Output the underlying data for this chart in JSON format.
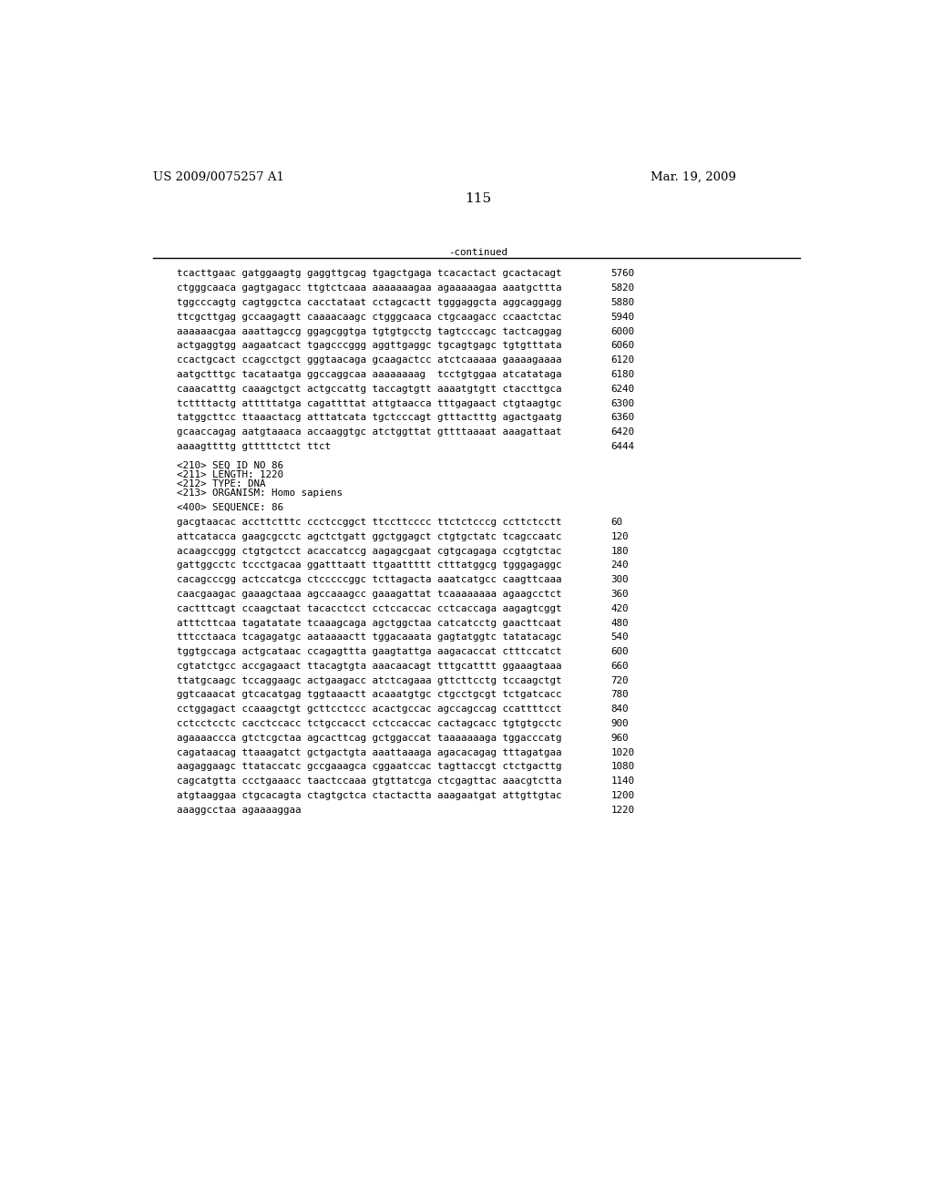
{
  "left_header": "US 2009/0075257 A1",
  "right_header": "Mar. 19, 2009",
  "page_number": "115",
  "continued_label": "-continued",
  "background_color": "#ffffff",
  "text_color": "#000000",
  "font_size_header": 9.5,
  "font_size_body": 7.8,
  "font_size_page": 11,
  "sequence_lines_part1": [
    [
      "tcacttgaac gatggaagtg gaggttgcag tgagctgaga tcacactact gcactacagt",
      "5760"
    ],
    [
      "ctgggcaaca gagtgagacc ttgtctcaaa aaaaaaagaa agaaaaagaa aaatgcttta",
      "5820"
    ],
    [
      "tggcccagtg cagtggctca cacctataat cctagcactt tgggaggcta aggcaggagg",
      "5880"
    ],
    [
      "ttcgcttgag gccaagagtt caaaacaagc ctgggcaaca ctgcaagacc ccaactctac",
      "5940"
    ],
    [
      "aaaaaacgaa aaattagccg ggagcggtga tgtgtgcctg tagtcccagc tactcaggag",
      "6000"
    ],
    [
      "actgaggtgg aagaatcact tgagcccggg aggttgaggc tgcagtgagc tgtgtttata",
      "6060"
    ],
    [
      "ccactgcact ccagcctgct gggtaacaga gcaagactcc atctcaaaaa gaaaagaaaa",
      "6120"
    ],
    [
      "aatgctttgc tacataatga ggccaggcaa aaaaaaaag  tcctgtggaa atcatataga",
      "6180"
    ],
    [
      "caaacatttg caaagctgct actgccattg taccagtgtt aaaatgtgtt ctaccttgca",
      "6240"
    ],
    [
      "tcttttactg atttttatga cagattttat attgtaacca tttgagaact ctgtaagtgc",
      "6300"
    ],
    [
      "tatggcttcc ttaaactacg atttatcata tgctcccagt gtttactttg agactgaatg",
      "6360"
    ],
    [
      "gcaaccagag aatgtaaaca accaaggtgc atctggttat gttttaaaat aaagattaat",
      "6420"
    ],
    [
      "aaaagttttg gtttttctct ttct",
      "6444"
    ]
  ],
  "metadata_lines": [
    "<210> SEQ ID NO 86",
    "<211> LENGTH: 1220",
    "<212> TYPE: DNA",
    "<213> ORGANISM: Homo sapiens"
  ],
  "sequence_header": "<400> SEQUENCE: 86",
  "sequence_lines_part2": [
    [
      "gacgtaacac accttctttc ccctccggct ttccttcccc ttctctcccg ccttctcctt",
      "60"
    ],
    [
      "attcatacca gaagcgcctc agctctgatt ggctggagct ctgtgctatc tcagccaatc",
      "120"
    ],
    [
      "acaagccggg ctgtgctcct acaccatccg aagagcgaat cgtgcagaga ccgtgtctac",
      "180"
    ],
    [
      "gattggcctc tccctgacaa ggatttaatt ttgaattttt ctttatggcg tgggagaggc",
      "240"
    ],
    [
      "cacagcccgg actccatcga ctcccccggc tcttagacta aaatcatgcc caagttcaaa",
      "300"
    ],
    [
      "caacgaagac gaaagctaaa agccaaagcc gaaagattat tcaaaaaaaa agaagcctct",
      "360"
    ],
    [
      "cactttcagt ccaagctaat tacacctcct cctccaccac cctcaccaga aagagtcggt",
      "420"
    ],
    [
      "atttcttcaa tagatatate tcaaagcaga agctggctaa catcatcctg gaacttcaat",
      "480"
    ],
    [
      "tttcctaaca tcagagatgc aataaaactt tggacaaata gagtatggtc tatatacagc",
      "540"
    ],
    [
      "tggtgccaga actgcataac ccagagttta gaagtattga aagacaccat ctttccatct",
      "600"
    ],
    [
      "cgtatctgcc accgagaact ttacagtgta aaacaacagt tttgcatttt ggaaagtaaa",
      "660"
    ],
    [
      "ttatgcaagc tccaggaagc actgaagacc atctcagaaa gttcttcctg tccaagctgt",
      "720"
    ],
    [
      "ggtcaaacat gtcacatgag tggtaaactt acaaatgtgc ctgcctgcgt tctgatcacc",
      "780"
    ],
    [
      "cctggagact ccaaagctgt gcttcctccc acactgccac agccagccag ccattttcct",
      "840"
    ],
    [
      "cctcctcctc cacctccacc tctgccacct cctccaccac cactagcacc tgtgtgcctc",
      "900"
    ],
    [
      "agaaaaccca gtctcgctaa agcacttcag gctggaccat taaaaaaaga tggacccatg",
      "960"
    ],
    [
      "cagataacag ttaaagatct gctgactgta aaattaaaga agacacagag tttagatgaa",
      "1020"
    ],
    [
      "aagaggaagc ttataccatc gccgaaagca cggaatccac tagttaccgt ctctgacttg",
      "1080"
    ],
    [
      "cagcatgtta ccctgaaacc taactccaaa gtgttatcga ctcgagttac aaacgtctta",
      "1140"
    ],
    [
      "atgtaaggaa ctgcacagta ctagtgctca ctactactta aaagaatgat attgttgtac",
      "1200"
    ],
    [
      "aaaggcctaa agaaaaggaa",
      "1220"
    ]
  ]
}
